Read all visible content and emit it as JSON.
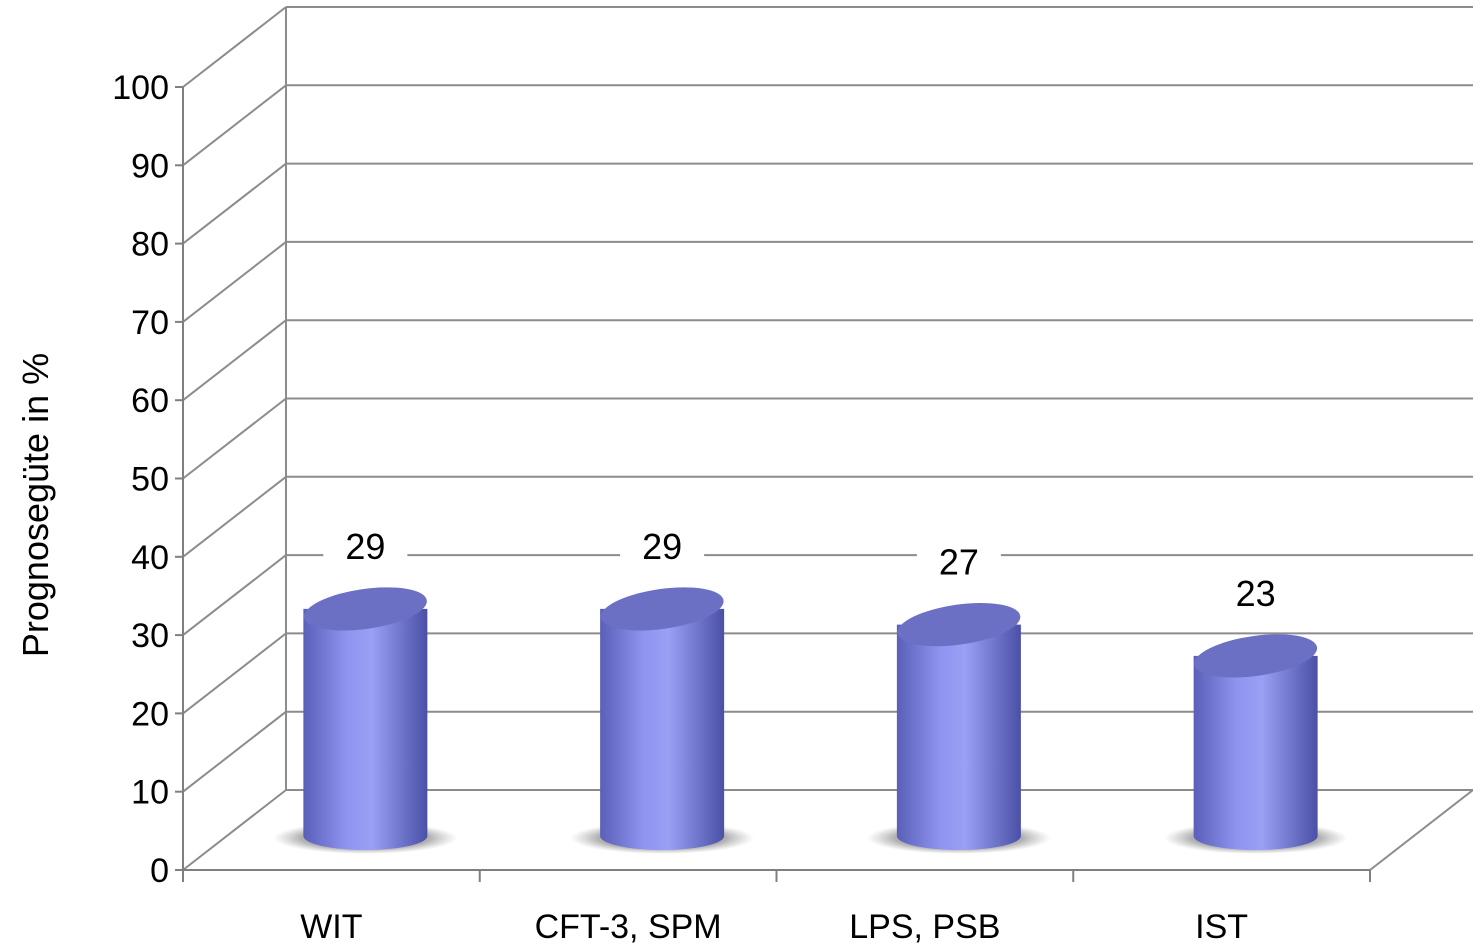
{
  "chart_data": {
    "type": "bar",
    "style": "3d-cylinder",
    "categories": [
      "WIT",
      "CFT-3, SPM",
      "LPS, PSB",
      "IST"
    ],
    "series": [
      {
        "values": [
          29,
          29,
          27,
          23
        ]
      }
    ],
    "data_labels": [
      "29",
      "29",
      "27",
      "23"
    ],
    "title": "",
    "xlabel": "",
    "ylabel": "Prognosegüte in %",
    "ylim": [
      0,
      100
    ],
    "yticks": [
      "0",
      "10",
      "20",
      "30",
      "40",
      "50",
      "60",
      "70",
      "80",
      "90",
      "100"
    ],
    "grid": true,
    "legend": "none",
    "colors": {
      "bar_light": "#9aa0f4",
      "bar_mid": "#7a80e6",
      "bar_dark": "#4d53a8",
      "bar_top": "#6b70c4",
      "gridline": "#8c8c8c",
      "axis": "#7f7f7f"
    }
  }
}
